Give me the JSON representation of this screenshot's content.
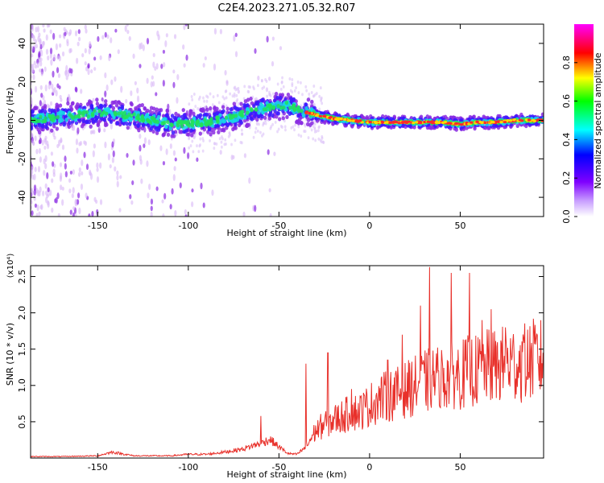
{
  "title": "C2E4.2023.271.05.32.R07",
  "chart_data": [
    {
      "type": "heatmap",
      "title": "C2E4.2023.271.05.32.R07",
      "xlabel": "Height of straight line (km)",
      "ylabel": "Frequency (Hz)",
      "xlim": [
        -187,
        96
      ],
      "ylim": [
        -50,
        50
      ],
      "xticks": [
        -150,
        -100,
        -50,
        0,
        50
      ],
      "xtick_labels": [
        "-150",
        "-100",
        "-50",
        "0",
        "50"
      ],
      "yticks": [
        -40,
        -20,
        0,
        20,
        40
      ],
      "ytick_labels": [
        "-40",
        "-20",
        "0",
        "20",
        "40"
      ],
      "colorbar": {
        "label": "Normalized spectral amplitude",
        "range": [
          0,
          1
        ],
        "ticks": [
          0.0,
          0.2,
          0.4,
          0.6,
          0.8
        ],
        "tick_labels": [
          "0.0",
          "0.2",
          "0.4",
          "0.6",
          "0.8"
        ],
        "colormap": [
          "#ffffff",
          "#7f00ff",
          "#0000ff",
          "#00ffff",
          "#00ff00",
          "#ffff00",
          "#ff0000",
          "#ff00ff"
        ]
      },
      "ridge_frequency_hz": {
        "x": [
          -187,
          -150,
          -130,
          -110,
          -90,
          -75,
          -60,
          -45,
          -38,
          -30,
          -20,
          -10,
          0,
          10,
          20,
          30,
          40,
          50,
          60,
          70,
          80,
          96
        ],
        "y": [
          0,
          4,
          2,
          -2,
          -1,
          2,
          6,
          8,
          5,
          3,
          1,
          0,
          -1,
          -1,
          -1,
          -1,
          -1,
          -2,
          -1,
          -1,
          0,
          0
        ]
      },
      "grid": false
    },
    {
      "type": "line",
      "xlabel": "Height of straight line (km)",
      "ylabel": "SNR (10 * v/v)",
      "y_multiplier": "(x10⁴)",
      "xlim": [
        -187,
        96
      ],
      "ylim": [
        0,
        2.65
      ],
      "xticks": [
        -150,
        -100,
        -50,
        0,
        50
      ],
      "xtick_labels": [
        "-150",
        "-100",
        "-50",
        "0",
        "50"
      ],
      "yticks": [
        0.5,
        1.0,
        1.5,
        2.0,
        2.5
      ],
      "ytick_labels": [
        "0.5",
        "1.0",
        "1.5",
        "2.0",
        "2.5"
      ],
      "series": [
        {
          "color": "#e8302a",
          "x": [
            -187,
            -170,
            -150,
            -142,
            -130,
            -110,
            -100,
            -90,
            -80,
            -70,
            -60,
            -55,
            -50,
            -45,
            -40,
            -35,
            -30,
            -25,
            -20,
            -15,
            -10,
            -5,
            0,
            5,
            10,
            15,
            20,
            25,
            30,
            35,
            40,
            45,
            50,
            55,
            60,
            65,
            70,
            75,
            80,
            85,
            90,
            96
          ],
          "y": [
            0.02,
            0.02,
            0.03,
            0.08,
            0.03,
            0.03,
            0.05,
            0.05,
            0.08,
            0.12,
            0.2,
            0.25,
            0.15,
            0.06,
            0.05,
            0.15,
            0.35,
            0.45,
            0.5,
            0.55,
            0.6,
            0.62,
            0.7,
            0.78,
            0.82,
            0.85,
            0.9,
            0.95,
            1.0,
            1.05,
            1.05,
            1.1,
            1.1,
            1.15,
            1.15,
            1.2,
            1.2,
            1.25,
            1.25,
            1.25,
            1.3,
            1.3
          ]
        }
      ],
      "peaks": [
        {
          "x": -60,
          "y": 0.58
        },
        {
          "x": -35,
          "y": 1.3
        },
        {
          "x": -23,
          "y": 1.45
        },
        {
          "x": -10,
          "y": 0.95
        },
        {
          "x": 10,
          "y": 1.35
        },
        {
          "x": 18,
          "y": 1.7
        },
        {
          "x": 28,
          "y": 2.1
        },
        {
          "x": 33,
          "y": 2.63
        },
        {
          "x": 38,
          "y": 1.2
        },
        {
          "x": 45,
          "y": 2.55
        },
        {
          "x": 55,
          "y": 2.55
        },
        {
          "x": 62,
          "y": 1.9
        },
        {
          "x": 67,
          "y": 2.05
        },
        {
          "x": 75,
          "y": 1.8
        },
        {
          "x": 85,
          "y": 1.65
        }
      ],
      "grid": false
    }
  ]
}
